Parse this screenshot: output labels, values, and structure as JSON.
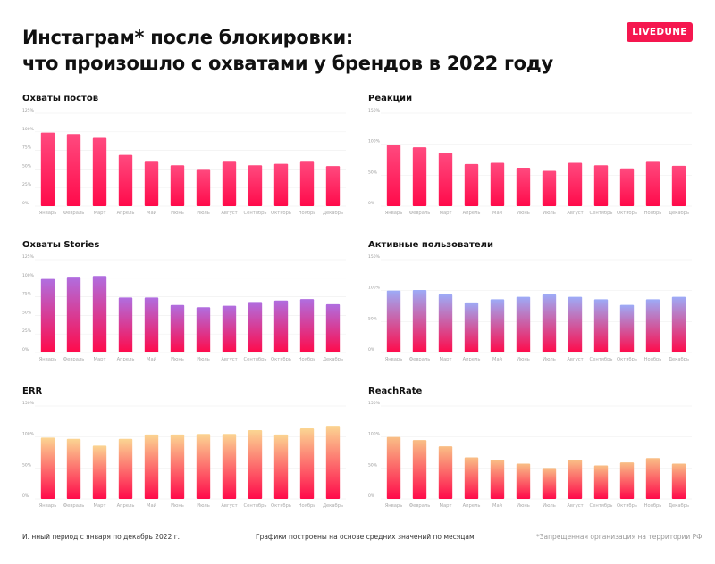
{
  "header": {
    "title_line1": "Инстаграм* после блокировки:",
    "title_line2": "что произошло с охватами у брендов в 2022 году",
    "logo": "LIVEDUNE",
    "logo_color": "#f5174f"
  },
  "footer": {
    "left": "И.    нный период с января по декабрь 2022 г.",
    "center": "Графики построены на основе средних значений по месяцам",
    "right": "*Запрещенная организация на территории РФ"
  },
  "chart_data": [
    {
      "type": "bar",
      "title": "Охваты постов",
      "ylim": [
        0,
        125
      ],
      "yticks": [
        "0%",
        "25%",
        "50%",
        "75%",
        "100%",
        "125%"
      ],
      "tick_values": [
        0,
        25,
        50,
        75,
        100,
        125
      ],
      "categories": [
        "Январь",
        "Февраль",
        "Март",
        "Апрель",
        "Май",
        "Июнь",
        "Июль",
        "Август",
        "Сентябрь",
        "Октябрь",
        "Ноябрь",
        "Декабрь"
      ],
      "values": [
        99,
        97,
        92,
        69,
        61,
        55,
        50,
        61,
        55,
        57,
        61,
        54
      ],
      "colors": [
        "#ff4a7f",
        "#ff0a4a"
      ],
      "grid": true
    },
    {
      "type": "bar",
      "title": "Реакции",
      "ylim": [
        0,
        150
      ],
      "yticks": [
        "0%",
        "50%",
        "100%",
        "150%"
      ],
      "tick_values": [
        0,
        50,
        100,
        150
      ],
      "categories": [
        "Январь",
        "Февраль",
        "Март",
        "Апрель",
        "Май",
        "Июнь",
        "Июль",
        "Август",
        "Сентябрь",
        "Октябрь",
        "Ноябрь",
        "Декабрь"
      ],
      "values": [
        99,
        95,
        86,
        68,
        70,
        62,
        57,
        70,
        66,
        61,
        73,
        65
      ],
      "colors": [
        "#ff4a7f",
        "#ff0a4a"
      ],
      "grid": true
    },
    {
      "type": "bar",
      "title": "Охваты Stories",
      "ylim": [
        0,
        125
      ],
      "yticks": [
        "0%",
        "25%",
        "50%",
        "75%",
        "100%",
        "125%"
      ],
      "tick_values": [
        0,
        25,
        50,
        75,
        100,
        125
      ],
      "categories": [
        "Январь",
        "Февраль",
        "Март",
        "Апрель",
        "Май",
        "Июнь",
        "Июль",
        "Август",
        "Сентябрь",
        "Октябрь",
        "Ноябрь",
        "Декабрь"
      ],
      "values": [
        99,
        102,
        103,
        74,
        74,
        64,
        61,
        63,
        68,
        70,
        72,
        65
      ],
      "colors": [
        "#b06ee0",
        "#ff0a4a"
      ],
      "grid": true
    },
    {
      "type": "bar",
      "title": "Активные пользователи",
      "ylim": [
        0,
        150
      ],
      "yticks": [
        "0%",
        "50%",
        "100%",
        "150%"
      ],
      "tick_values": [
        0,
        50,
        100,
        150
      ],
      "categories": [
        "Январь",
        "Февраль",
        "Март",
        "Апрель",
        "Май",
        "Июнь",
        "Июль",
        "Август",
        "Сентябрь",
        "Октябрь",
        "Ноябрь",
        "Декабрь"
      ],
      "values": [
        100,
        101,
        94,
        81,
        86,
        90,
        94,
        90,
        86,
        77,
        86,
        90
      ],
      "colors": [
        "#9dabf7",
        "#ff0a4a"
      ],
      "grid": true
    },
    {
      "type": "bar",
      "title": "ERR",
      "ylim": [
        0,
        150
      ],
      "yticks": [
        "0%",
        "50%",
        "100%",
        "150%"
      ],
      "tick_values": [
        0,
        50,
        100,
        150
      ],
      "categories": [
        "Январь",
        "Февраль",
        "Март",
        "Апрель",
        "Май",
        "Июнь",
        "Июль",
        "Август",
        "Сентябрь",
        "Октябрь",
        "Ноябрь",
        "Декабрь"
      ],
      "values": [
        99,
        97,
        86,
        97,
        104,
        104,
        105,
        105,
        111,
        104,
        114,
        118
      ],
      "colors": [
        "#fbd592",
        "#ff0a4a"
      ],
      "grid": true
    },
    {
      "type": "bar",
      "title": "ReachRate",
      "ylim": [
        0,
        150
      ],
      "yticks": [
        "0%",
        "50%",
        "100%",
        "150%"
      ],
      "tick_values": [
        0,
        50,
        100,
        150
      ],
      "categories": [
        "Январь",
        "Февраль",
        "Март",
        "Апрель",
        "Май",
        "Июнь",
        "Июль",
        "Август",
        "Сентябрь",
        "Октябрь",
        "Ноябрь",
        "Декабрь"
      ],
      "values": [
        100,
        95,
        85,
        67,
        63,
        57,
        50,
        63,
        54,
        59,
        66,
        57
      ],
      "colors": [
        "#f9bf86",
        "#ff0a4a"
      ],
      "grid": true
    }
  ]
}
